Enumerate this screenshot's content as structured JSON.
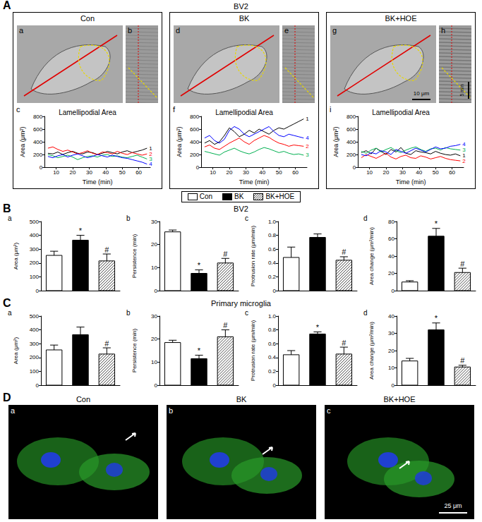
{
  "figure": {
    "panels": {
      "A": {
        "letter": "A",
        "title": "BV2",
        "columns": [
          {
            "title": "Con",
            "image_labels": [
              "a",
              "b"
            ],
            "chart_label": "c"
          },
          {
            "title": "BK",
            "image_labels": [
              "d",
              "e"
            ],
            "chart_label": "f"
          },
          {
            "title": "BK+HOE",
            "image_labels": [
              "g",
              "h"
            ],
            "chart_label": "i",
            "image_annotations": [
              "10 μm",
              "5 min"
            ]
          }
        ]
      },
      "B": {
        "letter": "B",
        "title": "BV2",
        "chart_labels": [
          "a",
          "b",
          "c",
          "d"
        ]
      },
      "C": {
        "letter": "C",
        "title": "Primary microglia",
        "chart_labels": [
          "a",
          "b",
          "c",
          "d"
        ]
      },
      "D": {
        "letter": "D",
        "image_titles": [
          "Con",
          "BK",
          "BK+HOE"
        ],
        "image_labels": [
          "a",
          "b",
          "c"
        ],
        "scale_bar": "25 μm"
      }
    },
    "legend_key": [
      {
        "label": "Con",
        "color": "#ffffff"
      },
      {
        "label": "BK",
        "color": "#000000"
      },
      {
        "label": "BK+HOE",
        "color": "#ffffff",
        "hatch": true
      }
    ]
  },
  "chart_data": [
    {
      "type": "line",
      "title": "Lamellipodial Area",
      "x_label": "Time (min)",
      "y_label": "Area (μm²)",
      "x": [
        5,
        8,
        11,
        14,
        17,
        20,
        23,
        26,
        29,
        32,
        35,
        38,
        41,
        44,
        47,
        50,
        53,
        56,
        59,
        62,
        65
      ],
      "series": [
        {
          "name": "1",
          "color": "#000000",
          "values": [
            220,
            210,
            240,
            200,
            230,
            250,
            220,
            210,
            240,
            230,
            200,
            220,
            250,
            230,
            210,
            240,
            260,
            230,
            250,
            270,
            300
          ]
        },
        {
          "name": "2",
          "color": "#ff0000",
          "values": [
            300,
            320,
            280,
            250,
            270,
            240,
            210,
            230,
            260,
            220,
            200,
            240,
            230,
            210,
            250,
            220,
            200,
            230,
            210,
            190,
            210
          ]
        },
        {
          "name": "3",
          "color": "#00b050",
          "values": [
            200,
            180,
            150,
            170,
            190,
            160,
            120,
            150,
            170,
            180,
            160,
            190,
            200,
            170,
            180,
            160,
            150,
            170,
            190,
            160,
            130
          ]
        },
        {
          "name": "4",
          "color": "#0000ff",
          "values": [
            170,
            150,
            180,
            200,
            160,
            190,
            210,
            180,
            150,
            170,
            200,
            180,
            160,
            190,
            170,
            150,
            140,
            120,
            100,
            80,
            50
          ]
        }
      ],
      "xlim": [
        3,
        67
      ],
      "xticks": [
        10,
        20,
        30,
        40,
        50,
        60
      ],
      "ylim": [
        0,
        800
      ],
      "yticks": [
        0,
        200,
        400,
        600,
        800
      ],
      "grid": false
    },
    {
      "type": "line",
      "title": "Lamellipodial Area",
      "x_label": "Time (min)",
      "y_label": "Area (μm²)",
      "x": [
        5,
        8,
        11,
        14,
        17,
        20,
        23,
        26,
        29,
        32,
        35,
        38,
        41,
        44,
        47,
        50,
        53,
        56,
        59,
        62,
        65
      ],
      "series": [
        {
          "name": "1",
          "color": "#000000",
          "values": [
            380,
            420,
            360,
            400,
            500,
            620,
            560,
            480,
            520,
            580,
            540,
            600,
            560,
            520,
            580,
            620,
            600,
            640,
            680,
            720,
            760
          ]
        },
        {
          "name": "2",
          "color": "#ff0000",
          "values": [
            320,
            350,
            300,
            280,
            330,
            380,
            420,
            460,
            400,
            360,
            420,
            460,
            500,
            470,
            420,
            380,
            360,
            330,
            350,
            340,
            330
          ]
        },
        {
          "name": "3",
          "color": "#00b050",
          "values": [
            250,
            230,
            210,
            190,
            240,
            270,
            300,
            260,
            230,
            210,
            240,
            280,
            310,
            290,
            260,
            230,
            250,
            220,
            200,
            210,
            190
          ]
        },
        {
          "name": "4",
          "color": "#0000ff",
          "values": [
            460,
            500,
            420,
            380,
            440,
            580,
            640,
            600,
            520,
            480,
            520,
            560,
            600,
            640,
            560,
            500,
            480,
            520,
            500,
            480,
            460
          ]
        }
      ],
      "xlim": [
        3,
        67
      ],
      "xticks": [
        10,
        20,
        30,
        40,
        50,
        60
      ],
      "ylim": [
        0,
        800
      ],
      "yticks": [
        0,
        200,
        400,
        600,
        800
      ],
      "grid": false
    },
    {
      "type": "line",
      "title": "Lamellipodial Area",
      "x_label": "Time (min)",
      "y_label": "Area (μm²)",
      "x": [
        5,
        8,
        11,
        14,
        17,
        20,
        23,
        26,
        29,
        32,
        35,
        38,
        41,
        44,
        47,
        50,
        53,
        56,
        59,
        62,
        65
      ],
      "series": [
        {
          "name": "1",
          "color": "#000000",
          "values": [
            230,
            260,
            210,
            300,
            250,
            200,
            280,
            240,
            310,
            220,
            200,
            260,
            240,
            230,
            210,
            250,
            220,
            200,
            190,
            210,
            180
          ]
        },
        {
          "name": "2",
          "color": "#ff0000",
          "values": [
            150,
            200,
            170,
            140,
            180,
            220,
            160,
            130,
            170,
            190,
            150,
            140,
            180,
            160,
            130,
            150,
            170,
            140,
            120,
            110,
            100
          ]
        },
        {
          "name": "3",
          "color": "#00b050",
          "values": [
            250,
            220,
            270,
            300,
            240,
            280,
            310,
            260,
            230,
            270,
            300,
            320,
            280,
            250,
            290,
            300,
            270,
            310,
            290,
            280,
            270
          ]
        },
        {
          "name": "4",
          "color": "#0000ff",
          "values": [
            200,
            180,
            230,
            210,
            260,
            240,
            200,
            280,
            250,
            220,
            260,
            300,
            270,
            240,
            280,
            320,
            290,
            300,
            330,
            340,
            360
          ]
        }
      ],
      "xlim": [
        3,
        67
      ],
      "xticks": [
        10,
        20,
        30,
        40,
        50,
        60
      ],
      "ylim": [
        0,
        800
      ],
      "yticks": [
        0,
        200,
        400,
        600,
        800
      ],
      "grid": false
    },
    {
      "type": "bar",
      "y_label": "Area (μm²)",
      "categories": [
        "Con",
        "BK",
        "BK+HOE"
      ],
      "values": [
        255,
        365,
        215
      ],
      "errors": [
        30,
        35,
        50
      ],
      "annotations": [
        null,
        "*",
        "#"
      ],
      "colors": [
        "#ffffff",
        "#000000",
        "#ffffff"
      ],
      "ylim": [
        0,
        500
      ],
      "yticks": [
        0,
        100,
        200,
        300,
        400,
        500
      ],
      "tick_labels": "y",
      "grid": false
    },
    {
      "type": "bar",
      "y_label": "Persistence (min)",
      "categories": [
        "Con",
        "BK",
        "BK+HOE"
      ],
      "values": [
        25.5,
        7.5,
        12
      ],
      "errors": [
        0.8,
        1.5,
        2
      ],
      "annotations": [
        null,
        "*",
        "#"
      ],
      "colors": [
        "#ffffff",
        "#000000",
        "#ffffff"
      ],
      "ylim": [
        0,
        30
      ],
      "yticks": [
        0,
        10,
        20,
        30
      ],
      "tick_labels": "y",
      "grid": false
    },
    {
      "type": "bar",
      "y_label": "Protrusion rate (μm/min)",
      "categories": [
        "Con",
        "BK",
        "BK+HOE"
      ],
      "values": [
        0.48,
        0.77,
        0.44
      ],
      "errors": [
        0.15,
        0.05,
        0.05
      ],
      "annotations": [
        null,
        null,
        "#"
      ],
      "colors": [
        "#ffffff",
        "#000000",
        "#ffffff"
      ],
      "ylim": [
        0,
        1
      ],
      "yticks": [
        0,
        0.2,
        0.4,
        0.6,
        0.8,
        {
          "value": 1,
          "label": "1.0"
        }
      ],
      "tick_labels": "y",
      "grid": false
    },
    {
      "type": "bar",
      "y_label": "Area change (μm²/min)",
      "categories": [
        "Con",
        "BK",
        "BK+HOE"
      ],
      "values": [
        10,
        63,
        21
      ],
      "errors": [
        1.5,
        9,
        5
      ],
      "annotations": [
        null,
        "*",
        "#"
      ],
      "colors": [
        "#ffffff",
        "#000000",
        "#ffffff"
      ],
      "ylim": [
        0,
        80
      ],
      "yticks": [
        0,
        20,
        40,
        60,
        80
      ],
      "tick_labels": "y",
      "grid": false
    },
    {
      "type": "bar",
      "y_label": "Area (μm²)",
      "categories": [
        "Con",
        "BK",
        "BK+HOE"
      ],
      "values": [
        255,
        365,
        225
      ],
      "errors": [
        35,
        55,
        45
      ],
      "annotations": [
        null,
        null,
        "#"
      ],
      "colors": [
        "#ffffff",
        "#000000",
        "#ffffff"
      ],
      "ylim": [
        0,
        500
      ],
      "yticks": [
        0,
        100,
        200,
        300,
        400,
        500
      ],
      "tick_labels": "y",
      "grid": false
    },
    {
      "type": "bar",
      "y_label": "Persistence (min)",
      "categories": [
        "Con",
        "BK",
        "BK+HOE"
      ],
      "values": [
        18.5,
        11.5,
        21
      ],
      "errors": [
        1,
        1.5,
        3
      ],
      "annotations": [
        null,
        "*",
        "#"
      ],
      "colors": [
        "#ffffff",
        "#000000",
        "#ffffff"
      ],
      "ylim": [
        0,
        30
      ],
      "yticks": [
        0,
        10,
        20,
        30
      ],
      "tick_labels": "y",
      "grid": false
    },
    {
      "type": "bar",
      "y_label": "Protrusion rate (μm/min)",
      "categories": [
        "Con",
        "BK",
        "BK+HOE"
      ],
      "values": [
        0.44,
        0.74,
        0.45
      ],
      "errors": [
        0.06,
        0.03,
        0.1
      ],
      "annotations": [
        null,
        "*",
        "#"
      ],
      "colors": [
        "#ffffff",
        "#000000",
        "#ffffff"
      ],
      "ylim": [
        0,
        1
      ],
      "yticks": [
        0,
        0.2,
        0.4,
        0.6,
        0.8,
        {
          "value": 1,
          "label": "1.0"
        }
      ],
      "tick_labels": "y",
      "grid": false
    },
    {
      "type": "bar",
      "y_label": "Area change (μm²/min)",
      "categories": [
        "Con",
        "BK",
        "BK+HOE"
      ],
      "values": [
        14,
        32,
        10.5
      ],
      "errors": [
        1.5,
        4,
        1
      ],
      "annotations": [
        null,
        "*",
        "#"
      ],
      "colors": [
        "#ffffff",
        "#000000",
        "#ffffff"
      ],
      "ylim": [
        0,
        40
      ],
      "yticks": [
        0,
        10,
        20,
        30,
        40
      ],
      "tick_labels": "y",
      "grid": false
    }
  ]
}
